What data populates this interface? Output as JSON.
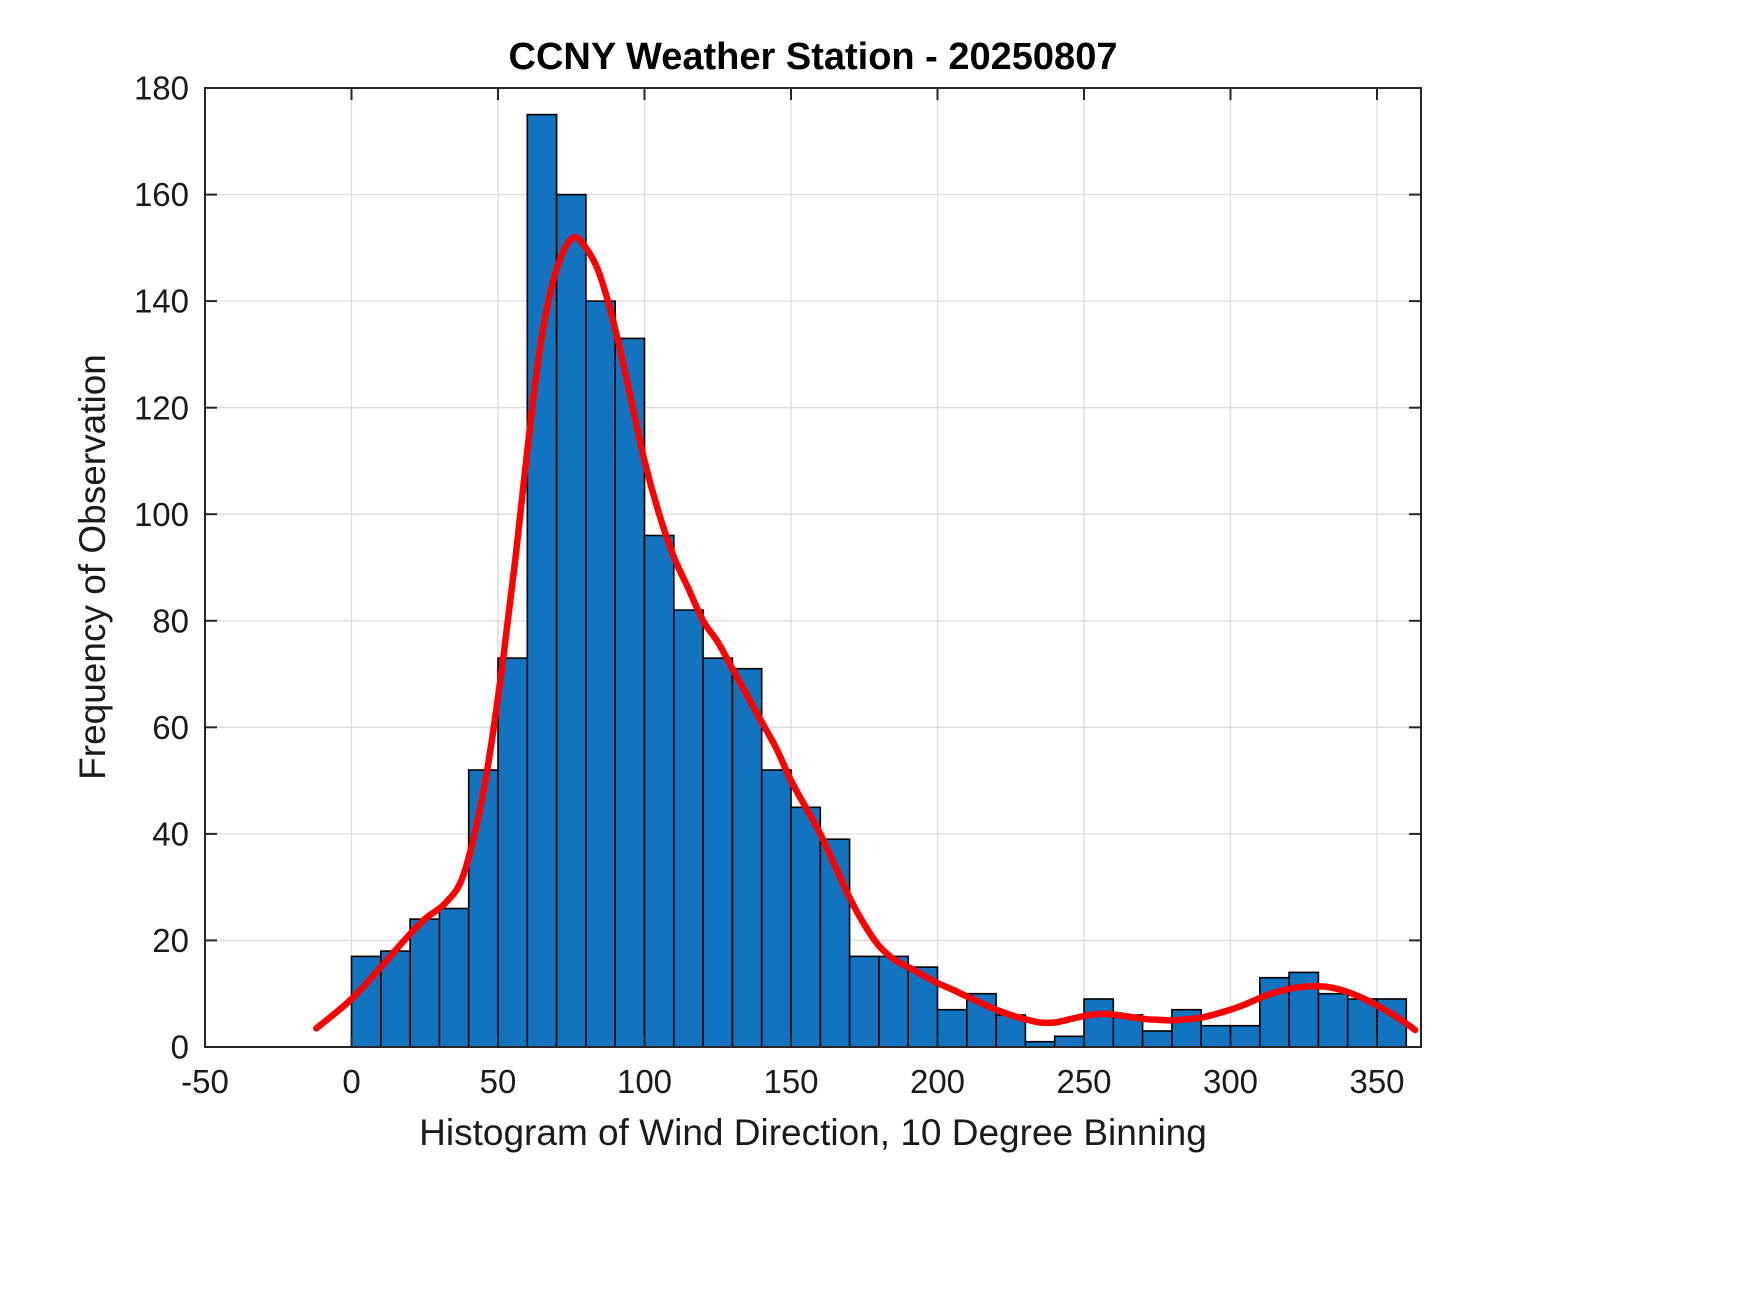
{
  "figure": {
    "background": "#ffffff"
  },
  "chart_data": {
    "type": "bar",
    "title": "CCNY Weather Station - 20250807",
    "xlabel": "Histogram of Wind Direction, 10 Degree Binning",
    "ylabel": "Frequency of Observation",
    "xlim": [
      -50,
      365
    ],
    "ylim": [
      0,
      180
    ],
    "xticks": [
      -50,
      0,
      50,
      100,
      150,
      200,
      250,
      300,
      350
    ],
    "yticks": [
      0,
      20,
      40,
      60,
      80,
      100,
      120,
      140,
      160,
      180
    ],
    "grid": true,
    "legend_position": "none",
    "bin_width": 10,
    "bins_start": [
      0,
      10,
      20,
      30,
      40,
      50,
      60,
      70,
      80,
      90,
      100,
      110,
      120,
      130,
      140,
      150,
      160,
      170,
      180,
      190,
      200,
      210,
      220,
      230,
      240,
      250,
      260,
      270,
      280,
      290,
      300,
      310,
      320,
      330,
      340,
      350
    ],
    "frequencies": [
      17,
      18,
      24,
      26,
      52,
      73,
      175,
      160,
      140,
      133,
      96,
      82,
      73,
      71,
      52,
      45,
      39,
      17,
      17,
      15,
      7,
      10,
      6,
      1,
      2,
      9,
      6,
      3,
      7,
      4,
      4,
      13,
      14,
      10,
      9,
      9
    ],
    "fit_curve": {
      "name": "smooth density fit",
      "x": [
        -12,
        0,
        10,
        18,
        25,
        32,
        38,
        44,
        48,
        52,
        56,
        60,
        64,
        68,
        72,
        76,
        80,
        84,
        88,
        92,
        96,
        100,
        105,
        110,
        115,
        120,
        125,
        130,
        135,
        140,
        145,
        150,
        155,
        160,
        165,
        170,
        175,
        180,
        185,
        190,
        195,
        200,
        205,
        210,
        215,
        220,
        225,
        230,
        235,
        240,
        245,
        250,
        255,
        260,
        265,
        270,
        275,
        280,
        285,
        290,
        295,
        300,
        305,
        310,
        315,
        320,
        325,
        330,
        335,
        340,
        345,
        350,
        355,
        360,
        363
      ],
      "y": [
        3.5,
        9,
        15,
        20,
        24,
        27,
        32,
        45,
        58,
        74,
        92,
        112,
        130,
        142,
        149,
        152,
        150,
        146,
        139,
        130,
        120,
        110,
        100,
        92,
        86,
        80,
        76,
        71,
        66,
        61,
        56,
        50,
        45,
        40,
        34,
        28,
        23,
        19,
        16.5,
        15,
        13.5,
        12,
        10.8,
        9.5,
        8.2,
        7,
        6,
        5.2,
        4.6,
        4.6,
        5.2,
        5.8,
        6.2,
        6.1,
        5.7,
        5.3,
        5.1,
        5,
        5.2,
        5.5,
        6.2,
        7,
        8,
        9.2,
        10.2,
        10.9,
        11.3,
        11.4,
        11.1,
        10.3,
        9.2,
        7.8,
        6.2,
        4.4,
        3.2
      ]
    },
    "colors": {
      "bar_fill": "#1274be",
      "bar_edge": "#000000",
      "curve": "#ff0000",
      "grid": "#dcdcdc",
      "axis": "#262626"
    }
  }
}
